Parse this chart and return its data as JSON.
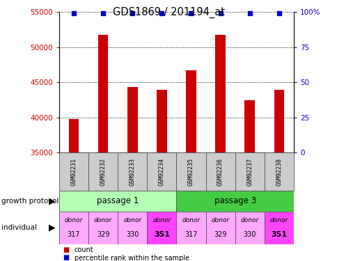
{
  "title": "GDS1869 / 201194_at",
  "samples": [
    "GSM92231",
    "GSM92232",
    "GSM92233",
    "GSM92234",
    "GSM92235",
    "GSM92236",
    "GSM92237",
    "GSM92238"
  ],
  "counts": [
    39800,
    51700,
    44300,
    43900,
    46700,
    51700,
    42400,
    43900
  ],
  "ylim_left": [
    35000,
    55000
  ],
  "ylim_right": [
    0,
    100
  ],
  "yticks_left": [
    35000,
    40000,
    45000,
    50000,
    55000
  ],
  "yticks_left_labels": [
    "35000",
    "40000",
    "45000",
    "50000",
    "55000"
  ],
  "yticks_right": [
    0,
    25,
    50,
    75,
    100
  ],
  "yticks_right_labels": [
    "0",
    "25",
    "50",
    "75",
    "100%"
  ],
  "bar_color": "#cc0000",
  "dot_color": "#0000cc",
  "passage1_color": "#b3ffb3",
  "passage3_color": "#44cc44",
  "donor_colors_light": "#ffaaff",
  "donor_colors_dark": "#ff44ff",
  "donor_bold": [
    false,
    false,
    false,
    true,
    false,
    false,
    false,
    true
  ],
  "passage_labels": [
    "passage 1",
    "passage 3"
  ],
  "donors_top": [
    "donor",
    "donor",
    "donor",
    "donor",
    "donor",
    "donor",
    "donor",
    "donor"
  ],
  "donors_bottom": [
    "317",
    "329",
    "330",
    "351",
    "317",
    "329",
    "330",
    "351"
  ],
  "legend_count_color": "#cc0000",
  "legend_dot_color": "#0000cc",
  "label_growth": "growth protocol",
  "label_individual": "individual"
}
